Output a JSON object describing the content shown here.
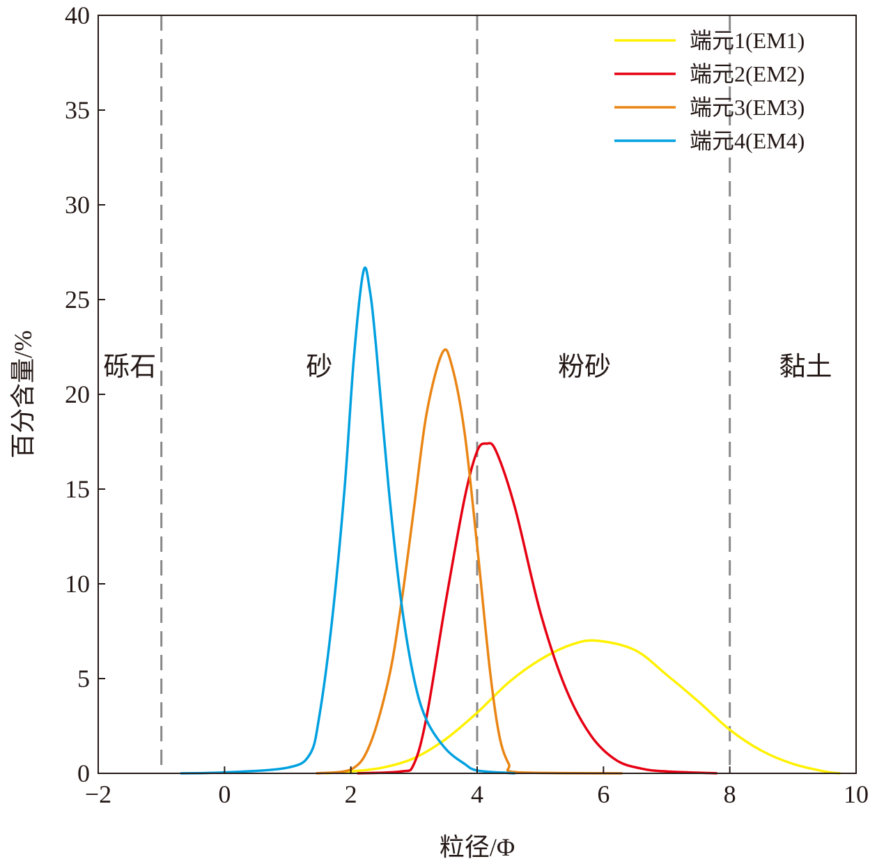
{
  "chart_data": {
    "type": "line",
    "xlabel": "粒径/Φ",
    "ylabel": "百分含量/%",
    "xlim": [
      -2,
      10
    ],
    "ylim": [
      0,
      40
    ],
    "xticks": [
      -2,
      0,
      2,
      4,
      6,
      8,
      10
    ],
    "xtick_labels": [
      "−2",
      "0",
      "2",
      "4",
      "6",
      "8",
      "10"
    ],
    "yticks": [
      0,
      5,
      10,
      15,
      20,
      25,
      30,
      35,
      40
    ],
    "ytick_labels": [
      "0",
      "5",
      "10",
      "15",
      "20",
      "25",
      "30",
      "35",
      "40"
    ],
    "grid": false,
    "legend_position": "top-right",
    "boundaries": [
      -1,
      4,
      8
    ],
    "zones": [
      {
        "label": "砾石",
        "x": -1.5,
        "y": 21.5
      },
      {
        "label": "砂",
        "x": 1.5,
        "y": 21.5
      },
      {
        "label": "粉砂",
        "x": 5.7,
        "y": 21.5
      },
      {
        "label": "黏土",
        "x": 9.2,
        "y": 21.5
      }
    ],
    "series": [
      {
        "name": "端元1(EM1)",
        "color": "#fff100",
        "x": [
          1.6,
          2.0,
          2.5,
          3.0,
          3.5,
          4.0,
          4.5,
          5.0,
          5.5,
          5.9,
          6.5,
          7.0,
          7.5,
          8.0,
          8.5,
          9.0,
          9.5,
          9.75
        ],
        "y": [
          0,
          0.1,
          0.3,
          0.8,
          1.8,
          3.2,
          4.8,
          6.0,
          6.8,
          7.0,
          6.5,
          5.2,
          3.8,
          2.3,
          1.2,
          0.5,
          0.1,
          0
        ]
      },
      {
        "name": "端元2(EM2)",
        "color": "#e60012",
        "x": [
          2.1,
          2.8,
          3.0,
          3.2,
          3.5,
          3.8,
          4.0,
          4.15,
          4.3,
          4.6,
          5.0,
          5.4,
          5.8,
          6.2,
          6.6,
          7.0,
          7.8
        ],
        "y": [
          0,
          0.1,
          0.5,
          3,
          9,
          14.5,
          17,
          17.4,
          17,
          14,
          8.5,
          4.5,
          2,
          0.7,
          0.25,
          0.1,
          0
        ]
      },
      {
        "name": "端元3(EM3)",
        "color": "#ea8514",
        "x": [
          1.45,
          2.0,
          2.3,
          2.6,
          2.8,
          3.0,
          3.2,
          3.45,
          3.6,
          3.8,
          4.0,
          4.2,
          4.35,
          4.5,
          4.65,
          6.3
        ],
        "y": [
          0,
          0.2,
          1.5,
          5,
          9,
          14,
          19,
          22.2,
          21.5,
          18,
          12,
          5.5,
          2,
          0.5,
          0.05,
          0
        ]
      },
      {
        "name": "端元4(EM4)",
        "color": "#00a0e0",
        "x": [
          -0.7,
          0,
          1.0,
          1.35,
          1.5,
          1.7,
          1.9,
          2.05,
          2.2,
          2.3,
          2.4,
          2.6,
          2.8,
          3.0,
          3.2,
          3.5,
          3.8,
          4.0,
          4.5,
          4.6
        ],
        "y": [
          0,
          0.05,
          0.3,
          1.0,
          3,
          8,
          15,
          22,
          26.5,
          25.5,
          22.5,
          15,
          9,
          5,
          2.8,
          1.3,
          0.5,
          0.15,
          0.02,
          0
        ]
      }
    ]
  }
}
